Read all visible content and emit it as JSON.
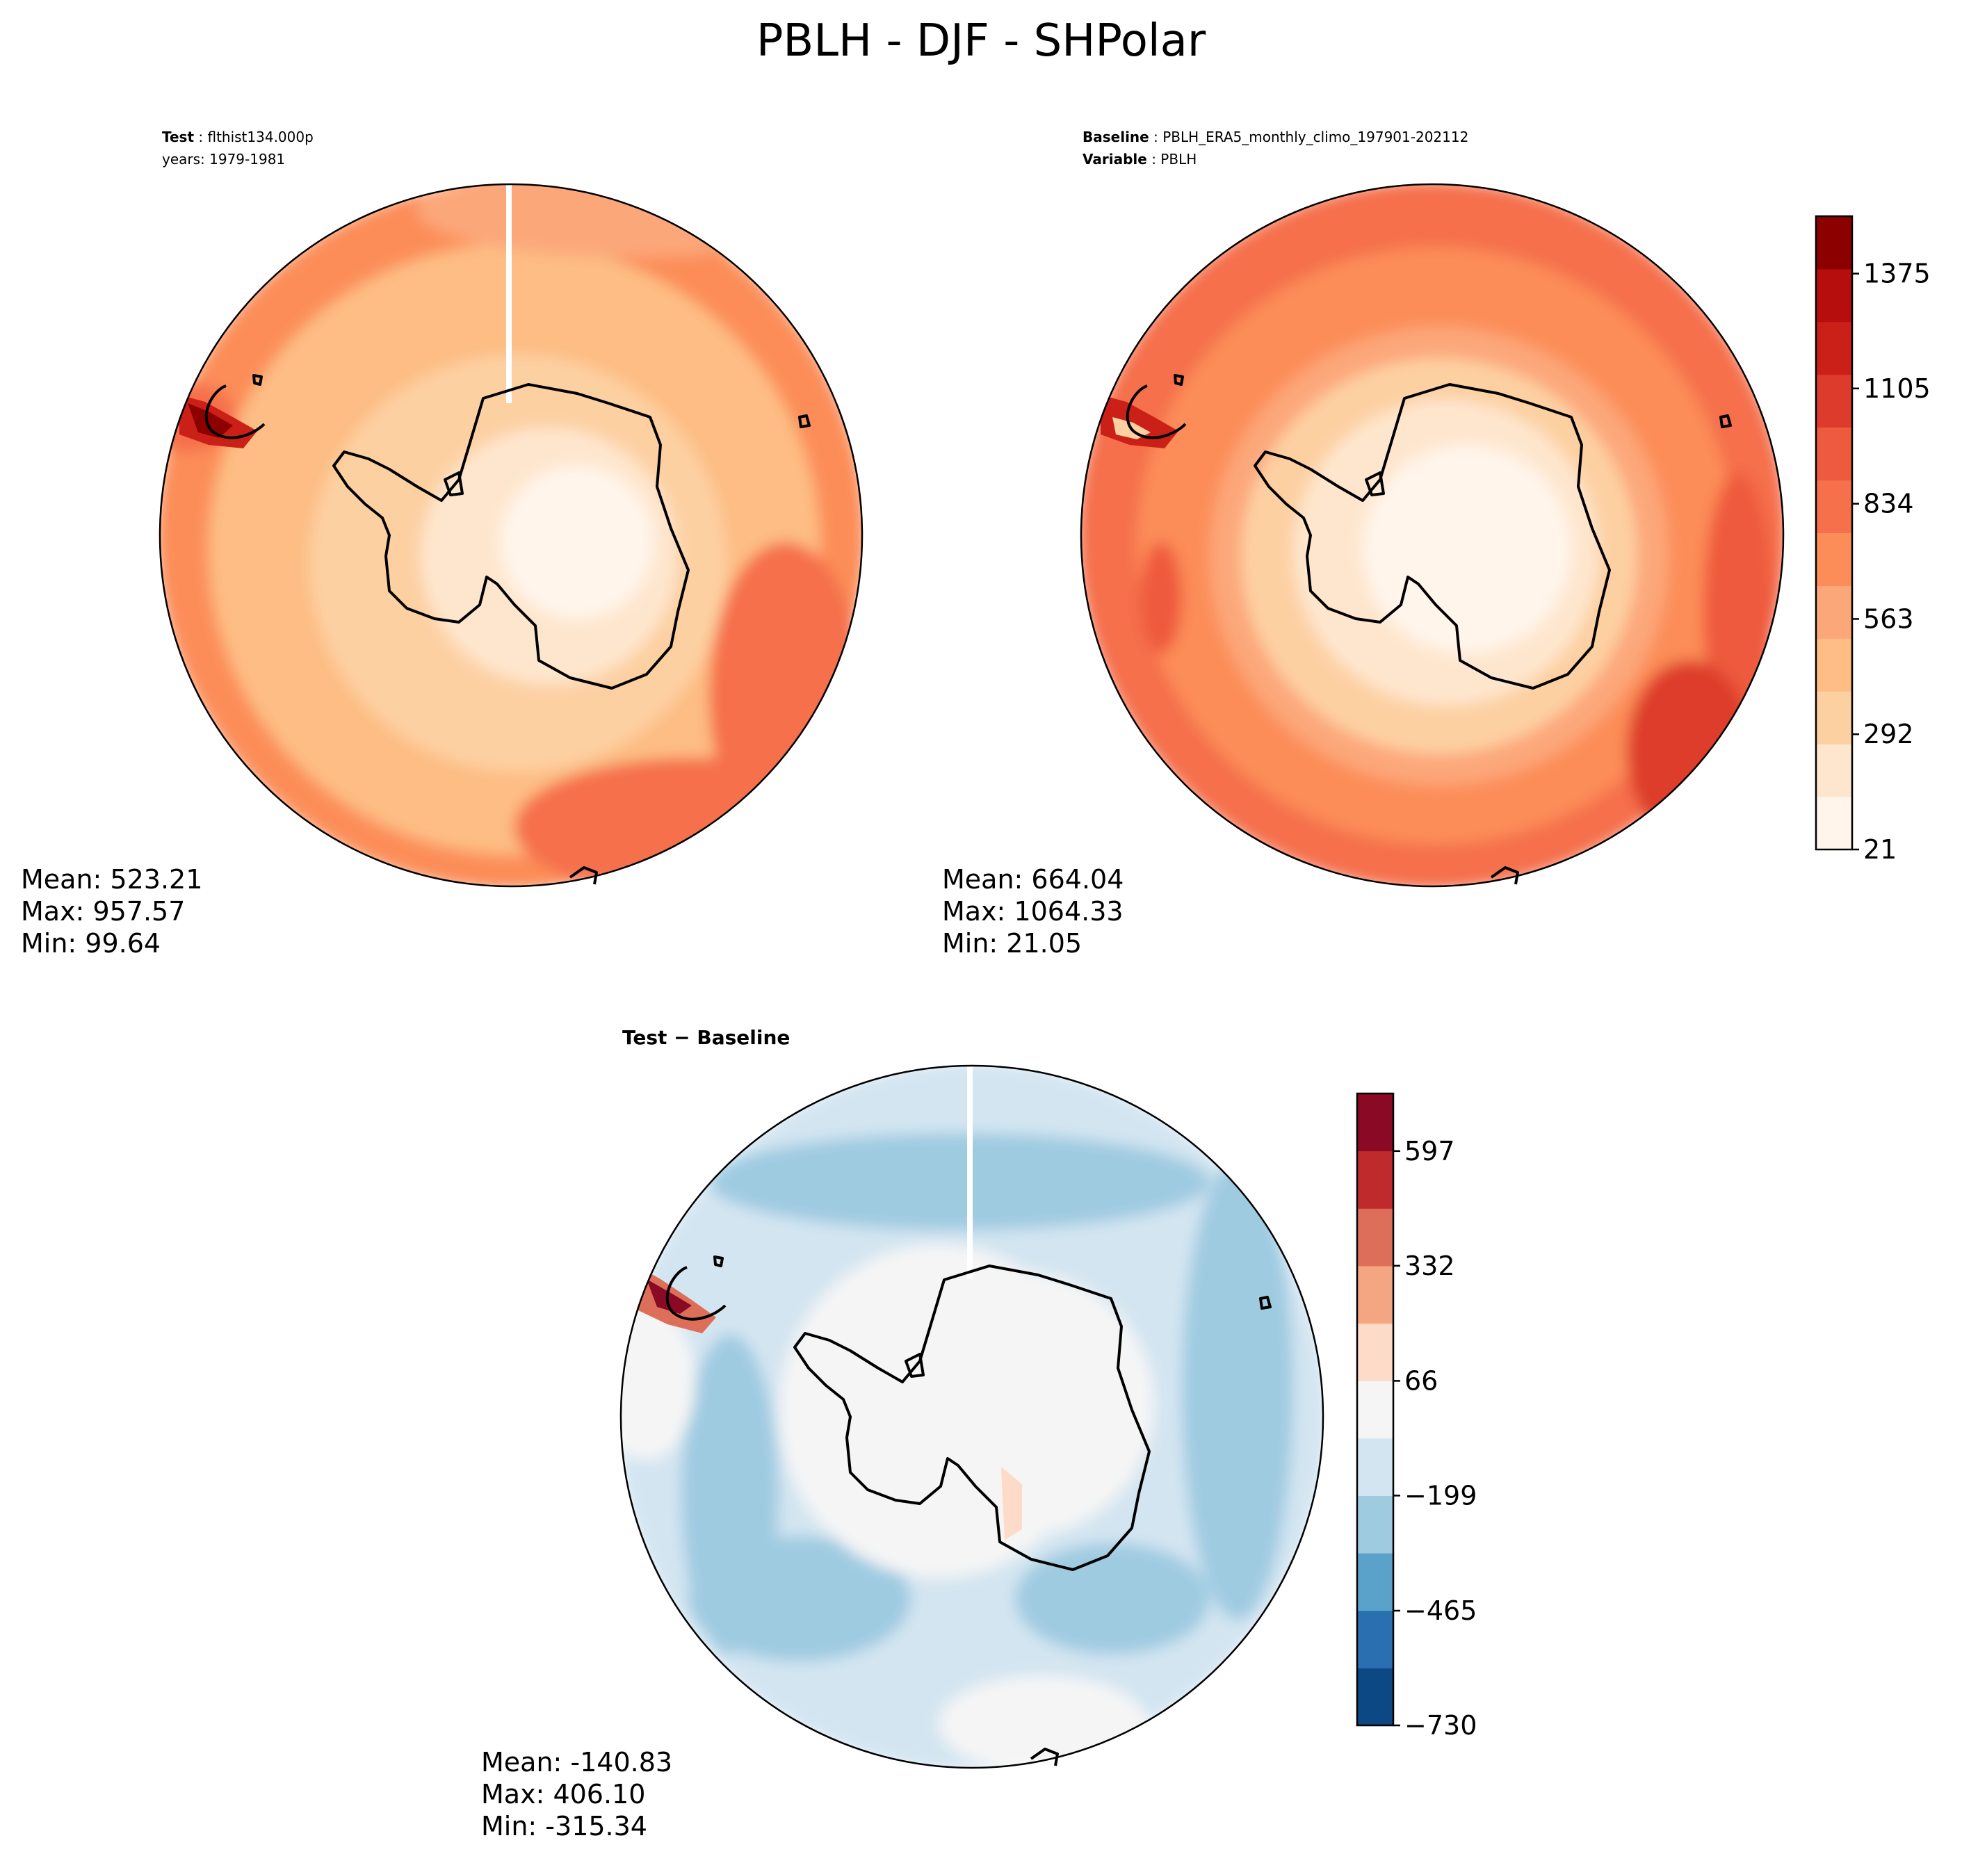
{
  "title": "PBLH - DJF - SHPolar",
  "panels": {
    "test": {
      "label_bold": "Test",
      "label_value": "flthist134.000p",
      "line2": "years: 1979-1981",
      "mean": "Mean: 523.21",
      "max": "Max: 957.57",
      "min": "Min: 99.64"
    },
    "baseline": {
      "label_bold": "Baseline",
      "label_value": "PBLH_ERA5_monthly_climo_197901-202112",
      "line2_bold": "Variable",
      "line2_value": "PBLH",
      "mean": "Mean: 664.04",
      "max": "Max: 1064.33",
      "min": "Min: 21.05"
    },
    "diff": {
      "label": "Test − Baseline",
      "mean": "Mean: -140.83",
      "max": "Max: 406.10",
      "min": "Min: -315.34"
    }
  },
  "chart_data": [
    {
      "type": "heatmap",
      "name": "Test",
      "projection": "south-polar-stereographic",
      "mean": 523.21,
      "max": 957.57,
      "min": 99.64,
      "colormap": "Reds"
    },
    {
      "type": "heatmap",
      "name": "Baseline",
      "projection": "south-polar-stereographic",
      "mean": 664.04,
      "max": 1064.33,
      "min": 21.05,
      "colormap": "Reds"
    },
    {
      "type": "heatmap",
      "name": "Test − Baseline",
      "projection": "south-polar-stereographic",
      "mean": -140.83,
      "max": 406.1,
      "min": -315.34,
      "colormap": "RdBu_r"
    }
  ],
  "colorbars": {
    "main": {
      "ticks": [
        "21",
        "292",
        "563",
        "834",
        "1105",
        "1375"
      ],
      "range": [
        21,
        1510
      ],
      "colors": [
        "#fff5eb",
        "#fee6ce",
        "#fdd0a2",
        "#fdbd84",
        "#fca77a",
        "#fc8d59",
        "#f5704b",
        "#ee5a3e",
        "#dd3c2c",
        "#cb2018",
        "#b50e0d",
        "#8c0000"
      ]
    },
    "diff": {
      "ticks": [
        "−730",
        "−465",
        "−199",
        "66",
        "332",
        "597"
      ],
      "range": [
        -730,
        730
      ],
      "colors": [
        "#0c4883",
        "#2a70b1",
        "#5ba2cb",
        "#9fcbe1",
        "#d3e5f1",
        "#f5f5f5",
        "#fddbc8",
        "#f4a682",
        "#dd6f5a",
        "#bf2a2d",
        "#8a0a25"
      ]
    }
  }
}
